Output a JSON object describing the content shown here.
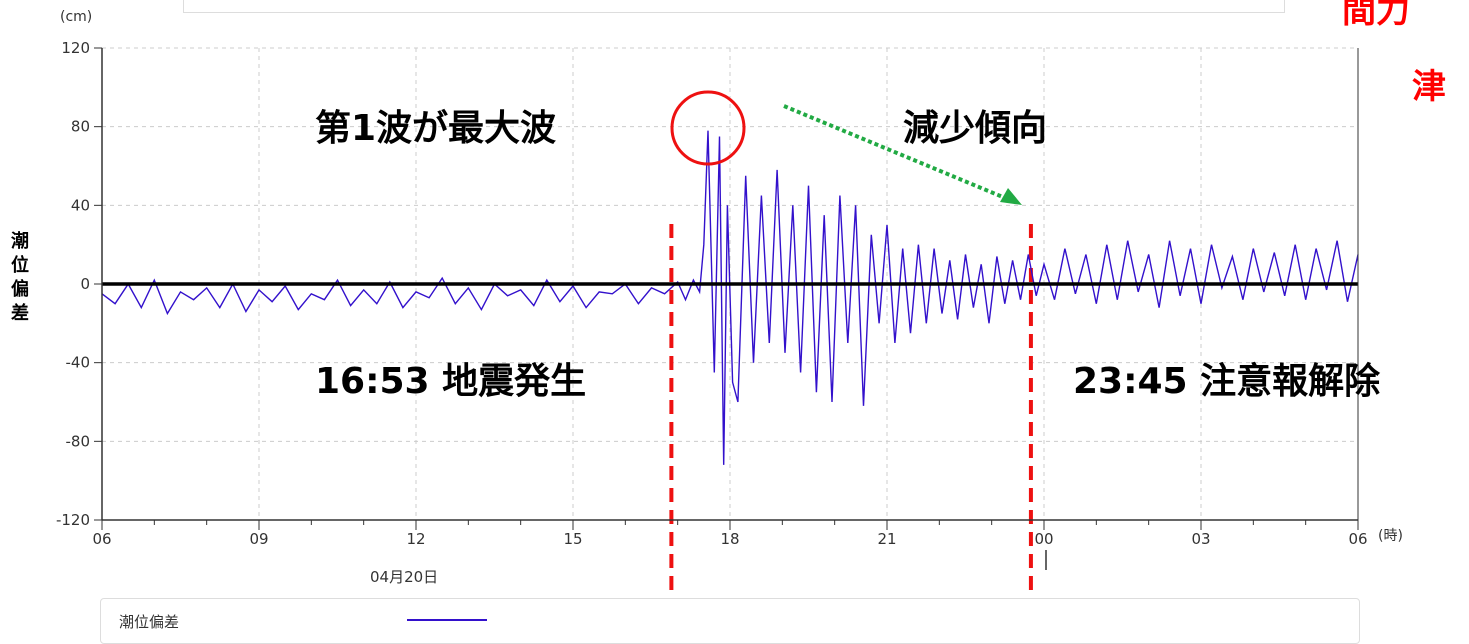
{
  "chart_data": {
    "type": "line",
    "title": "",
    "y_unit": "(cm)",
    "x_unit": "(時)",
    "ylabel_chars": [
      "潮",
      "位",
      "偏",
      "差"
    ],
    "ylim": [
      -120,
      120
    ],
    "yticks": [
      120,
      80,
      40,
      0,
      -40,
      -80,
      -120
    ],
    "xlim": [
      6,
      30
    ],
    "xticks": [
      {
        "hour": 6,
        "label": "06"
      },
      {
        "hour": 9,
        "label": "09"
      },
      {
        "hour": 12,
        "label": "12"
      },
      {
        "hour": 15,
        "label": "15"
      },
      {
        "hour": 18,
        "label": "18"
      },
      {
        "hour": 21,
        "label": "21"
      },
      {
        "hour": 24,
        "label": "00"
      },
      {
        "hour": 27,
        "label": "03"
      },
      {
        "hour": 30,
        "label": "06"
      }
    ],
    "date_label": "04月20日",
    "grid": true,
    "series": [
      {
        "name": "潮位偏差",
        "color": "#3311cc",
        "x": [
          6.0,
          6.25,
          6.5,
          6.75,
          7.0,
          7.25,
          7.5,
          7.75,
          8.0,
          8.25,
          8.5,
          8.75,
          9.0,
          9.25,
          9.5,
          9.75,
          10.0,
          10.25,
          10.5,
          10.75,
          11.0,
          11.25,
          11.5,
          11.75,
          12.0,
          12.25,
          12.5,
          12.75,
          13.0,
          13.25,
          13.5,
          13.75,
          14.0,
          14.25,
          14.5,
          14.75,
          15.0,
          15.25,
          15.5,
          15.75,
          16.0,
          16.25,
          16.5,
          16.75,
          17.0,
          17.15,
          17.3,
          17.42,
          17.5,
          17.58,
          17.7,
          17.8,
          17.88,
          17.95,
          18.05,
          18.15,
          18.3,
          18.45,
          18.6,
          18.75,
          18.9,
          19.05,
          19.2,
          19.35,
          19.5,
          19.65,
          19.8,
          19.95,
          20.1,
          20.25,
          20.4,
          20.55,
          20.7,
          20.85,
          21.0,
          21.15,
          21.3,
          21.45,
          21.6,
          21.75,
          21.9,
          22.05,
          22.2,
          22.35,
          22.5,
          22.65,
          22.8,
          22.95,
          23.1,
          23.25,
          23.4,
          23.55,
          23.7,
          23.85,
          24.0,
          24.2,
          24.4,
          24.6,
          24.8,
          25.0,
          25.2,
          25.4,
          25.6,
          25.8,
          26.0,
          26.2,
          26.4,
          26.6,
          26.8,
          27.0,
          27.2,
          27.4,
          27.6,
          27.8,
          28.0,
          28.2,
          28.4,
          28.6,
          28.8,
          29.0,
          29.2,
          29.4,
          29.6,
          29.8,
          30.0
        ],
        "y": [
          -5,
          -10,
          0,
          -12,
          2,
          -15,
          -4,
          -8,
          -2,
          -12,
          0,
          -14,
          -3,
          -9,
          -1,
          -13,
          -5,
          -8,
          2,
          -11,
          -3,
          -10,
          1,
          -12,
          -4,
          -7,
          3,
          -10,
          -2,
          -13,
          0,
          -6,
          -3,
          -11,
          2,
          -9,
          -1,
          -12,
          -4,
          -5,
          0,
          -10,
          -2,
          -5,
          1,
          -8,
          2,
          -4,
          20,
          78,
          -45,
          75,
          -92,
          40,
          -50,
          -60,
          55,
          -40,
          45,
          -30,
          58,
          -35,
          40,
          -45,
          50,
          -55,
          35,
          -60,
          45,
          -30,
          40,
          -62,
          25,
          -20,
          30,
          -30,
          18,
          -25,
          20,
          -20,
          18,
          -15,
          12,
          -18,
          15,
          -12,
          10,
          -20,
          14,
          -10,
          12,
          -8,
          15,
          -6,
          10,
          -8,
          18,
          -5,
          15,
          -10,
          20,
          -8,
          22,
          -4,
          15,
          -12,
          22,
          -6,
          18,
          -10,
          20,
          -2,
          14,
          -8,
          18,
          -4,
          16,
          -6,
          20,
          -8,
          18,
          -3,
          22,
          -9,
          15
        ]
      }
    ],
    "event_markers": [
      {
        "hour": 16.88,
        "color": "#ee1111",
        "label": "16:53 地震発生"
      },
      {
        "hour": 23.75,
        "color": "#ee1111",
        "label": "23:45 注意報解除"
      }
    ],
    "annotations": {
      "first_wave": "第1波が最大波",
      "decreasing": "減少傾向",
      "top_right_red_1": "間力",
      "top_right_red_2": "津"
    }
  },
  "legend": {
    "label": "潮位偏差"
  }
}
